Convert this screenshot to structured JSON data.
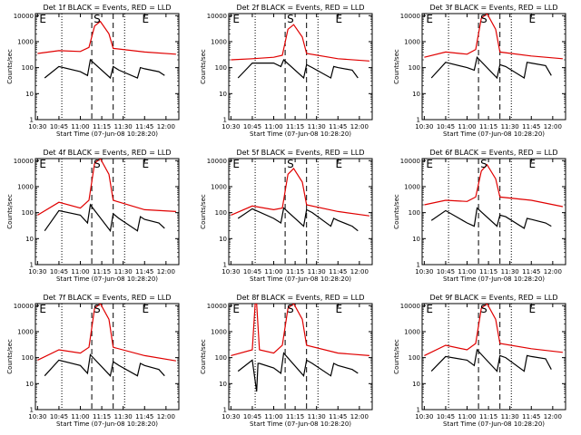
{
  "colors": {
    "events": "#000000",
    "lld": "#e00000",
    "background": "#ffffff"
  },
  "chart_data": [
    {
      "type": "line",
      "title": "Det 1f BLACK = Events, RED = LLD",
      "xlabel": "Start Time (07-Jun-08 10:28:20)",
      "ylabel": "Counts/sec",
      "xticks": [
        "10:30",
        "10:45",
        "11:00",
        "11:15",
        "11:30",
        "11:45",
        "12:00"
      ],
      "yticks": [
        "1",
        "10",
        "100",
        "1000",
        "10000"
      ],
      "ylog": true,
      "ylim": [
        1,
        12000
      ],
      "markers": [
        {
          "label": "E",
          "time": "10:30"
        },
        {
          "label": "S",
          "time": "11:08"
        },
        {
          "label": "E",
          "time": "11:42"
        }
      ],
      "dotted_lines": [
        "10:47",
        "11:31"
      ],
      "dashed_lines": [
        "11:08",
        "11:23"
      ],
      "series": [
        {
          "name": "LLD",
          "color": "#e00000",
          "x": [
            "10:30",
            "10:45",
            "11:00",
            "11:06",
            "11:10",
            "11:14",
            "11:20",
            "11:23",
            "11:45",
            "12:07"
          ],
          "y": [
            350,
            450,
            420,
            600,
            4000,
            6000,
            2000,
            550,
            400,
            330
          ]
        },
        {
          "name": "Events",
          "color": "#000000",
          "x": [
            "10:35",
            "10:45",
            "11:00",
            "11:05",
            "11:07",
            "11:21",
            "11:23",
            "11:27",
            "11:40",
            "11:42",
            "11:45",
            "11:55",
            "11:59"
          ],
          "y": [
            40,
            110,
            70,
            50,
            200,
            40,
            110,
            80,
            40,
            100,
            90,
            70,
            50
          ]
        }
      ]
    },
    {
      "type": "line",
      "title": "Det 2f BLACK = Events, RED = LLD",
      "xlabel": "Start Time (07-Jun-08 10:28:20)",
      "ylabel": "Counts/sec",
      "xticks": [
        "10:30",
        "10:45",
        "11:00",
        "11:15",
        "11:30",
        "11:45",
        "12:00"
      ],
      "yticks": [
        "1",
        "10",
        "100",
        "1000",
        "10000"
      ],
      "ylog": true,
      "ylim": [
        1,
        12000
      ],
      "markers": [
        {
          "label": "E",
          "time": "10:30"
        },
        {
          "label": "S",
          "time": "11:08"
        },
        {
          "label": "E",
          "time": "11:42"
        }
      ],
      "dotted_lines": [
        "10:47",
        "11:31"
      ],
      "dashed_lines": [
        "11:08",
        "11:23"
      ],
      "series": [
        {
          "name": "LLD",
          "color": "#e00000",
          "x": [
            "10:30",
            "10:45",
            "11:00",
            "11:06",
            "11:10",
            "11:14",
            "11:20",
            "11:23",
            "11:45",
            "12:07"
          ],
          "y": [
            200,
            220,
            250,
            300,
            3000,
            4500,
            1500,
            350,
            220,
            180
          ]
        },
        {
          "name": "Events",
          "color": "#000000",
          "x": [
            "10:35",
            "10:45",
            "11:00",
            "11:05",
            "11:07",
            "11:21",
            "11:23",
            "11:27",
            "11:40",
            "11:42",
            "11:45",
            "11:55",
            "11:59"
          ],
          "y": [
            40,
            150,
            150,
            110,
            200,
            40,
            130,
            100,
            40,
            110,
            100,
            80,
            40
          ]
        }
      ]
    },
    {
      "type": "line",
      "title": "Det 3f BLACK = Events, RED = LLD",
      "xlabel": "Start Time (07-Jun-08 10:28:20)",
      "ylabel": "Counts/sec",
      "xticks": [
        "10:30",
        "10:45",
        "11:00",
        "11:15",
        "11:30",
        "11:45",
        "12:00"
      ],
      "yticks": [
        "1",
        "10",
        "100",
        "1000",
        "10000"
      ],
      "ylog": true,
      "ylim": [
        1,
        12000
      ],
      "markers": [
        {
          "label": "E",
          "time": "10:30"
        },
        {
          "label": "S",
          "time": "11:08"
        },
        {
          "label": "E",
          "time": "11:42"
        }
      ],
      "dotted_lines": [
        "10:47",
        "11:31"
      ],
      "dashed_lines": [
        "11:08",
        "11:23"
      ],
      "series": [
        {
          "name": "LLD",
          "color": "#e00000",
          "x": [
            "10:30",
            "10:45",
            "11:00",
            "11:06",
            "11:10",
            "11:14",
            "11:20",
            "11:23",
            "11:45",
            "12:07"
          ],
          "y": [
            250,
            400,
            330,
            500,
            8000,
            12000,
            3000,
            400,
            280,
            220
          ]
        },
        {
          "name": "Events",
          "color": "#000000",
          "x": [
            "10:35",
            "10:45",
            "11:00",
            "11:05",
            "11:07",
            "11:21",
            "11:23",
            "11:27",
            "11:40",
            "11:42",
            "11:45",
            "11:55",
            "11:59"
          ],
          "y": [
            40,
            160,
            100,
            80,
            250,
            40,
            130,
            110,
            40,
            160,
            150,
            120,
            50
          ]
        }
      ]
    },
    {
      "type": "line",
      "title": "Det 4f BLACK = Events, RED = LLD",
      "xlabel": "Start Time (07-Jun-08 10:28:20)",
      "ylabel": "Counts/sec",
      "xticks": [
        "10:30",
        "10:45",
        "11:00",
        "11:15",
        "11:30",
        "11:45",
        "12:00"
      ],
      "yticks": [
        "1",
        "10",
        "100",
        "1000",
        "10000"
      ],
      "ylog": true,
      "ylim": [
        1,
        12000
      ],
      "markers": [
        {
          "label": "E",
          "time": "10:30"
        },
        {
          "label": "S",
          "time": "11:08"
        },
        {
          "label": "E",
          "time": "11:42"
        }
      ],
      "dotted_lines": [
        "10:47",
        "11:31"
      ],
      "dashed_lines": [
        "11:08",
        "11:23"
      ],
      "series": [
        {
          "name": "LLD",
          "color": "#e00000",
          "x": [
            "10:30",
            "10:45",
            "11:00",
            "11:06",
            "11:10",
            "11:14",
            "11:20",
            "11:23",
            "11:45",
            "12:07"
          ],
          "y": [
            80,
            250,
            150,
            300,
            8000,
            12000,
            3000,
            300,
            130,
            110
          ]
        },
        {
          "name": "Events",
          "color": "#000000",
          "x": [
            "10:35",
            "10:45",
            "11:00",
            "11:05",
            "11:07",
            "11:21",
            "11:23",
            "11:27",
            "11:40",
            "11:42",
            "11:45",
            "11:55",
            "11:59"
          ],
          "y": [
            20,
            120,
            80,
            40,
            200,
            20,
            90,
            60,
            20,
            70,
            55,
            40,
            25
          ]
        }
      ]
    },
    {
      "type": "line",
      "title": "Det 5f BLACK = Events, RED = LLD",
      "xlabel": "Start Time (07-Jun-08 10:28:20)",
      "ylabel": "Counts/sec",
      "xticks": [
        "10:30",
        "10:45",
        "11:00",
        "11:15",
        "11:30",
        "11:45",
        "12:00"
      ],
      "yticks": [
        "1",
        "10",
        "100",
        "1000",
        "10000"
      ],
      "ylog": true,
      "ylim": [
        1,
        12000
      ],
      "markers": [
        {
          "label": "E",
          "time": "10:30"
        },
        {
          "label": "S",
          "time": "11:08"
        },
        {
          "label": "E",
          "time": "11:42"
        }
      ],
      "dotted_lines": [
        "10:47",
        "11:31"
      ],
      "dashed_lines": [
        "11:08",
        "11:23"
      ],
      "series": [
        {
          "name": "LLD",
          "color": "#e00000",
          "x": [
            "10:30",
            "10:45",
            "11:00",
            "11:06",
            "11:10",
            "11:14",
            "11:20",
            "11:23",
            "11:45",
            "12:07"
          ],
          "y": [
            80,
            180,
            130,
            150,
            3000,
            5000,
            1500,
            200,
            110,
            75
          ]
        },
        {
          "name": "Events",
          "color": "#000000",
          "x": [
            "10:35",
            "10:45",
            "11:00",
            "11:05",
            "11:07",
            "11:21",
            "11:23",
            "11:27",
            "11:40",
            "11:42",
            "11:45",
            "11:55",
            "11:59"
          ],
          "y": [
            60,
            140,
            60,
            40,
            150,
            30,
            130,
            100,
            30,
            60,
            50,
            30,
            20
          ]
        }
      ]
    },
    {
      "type": "line",
      "title": "Det 6f BLACK = Events, RED = LLD",
      "xlabel": "Start Time (07-Jun-08 10:28:20)",
      "ylabel": "Counts/sec",
      "xticks": [
        "10:30",
        "10:45",
        "11:00",
        "11:15",
        "11:30",
        "11:45",
        "12:00"
      ],
      "yticks": [
        "1",
        "10",
        "100",
        "1000",
        "10000"
      ],
      "ylog": true,
      "ylim": [
        1,
        12000
      ],
      "markers": [
        {
          "label": "E",
          "time": "10:30"
        },
        {
          "label": "S",
          "time": "11:08"
        },
        {
          "label": "E",
          "time": "11:42"
        }
      ],
      "dotted_lines": [
        "10:47",
        "11:31"
      ],
      "dashed_lines": [
        "11:08",
        "11:23"
      ],
      "series": [
        {
          "name": "LLD",
          "color": "#e00000",
          "x": [
            "10:30",
            "10:45",
            "11:00",
            "11:06",
            "11:10",
            "11:14",
            "11:20",
            "11:23",
            "11:45",
            "12:07"
          ],
          "y": [
            200,
            300,
            270,
            400,
            4000,
            7000,
            2000,
            400,
            300,
            170
          ]
        },
        {
          "name": "Events",
          "color": "#000000",
          "x": [
            "10:35",
            "10:45",
            "11:00",
            "11:05",
            "11:07",
            "11:21",
            "11:23",
            "11:27",
            "11:40",
            "11:42",
            "11:45",
            "11:55",
            "11:59"
          ],
          "y": [
            50,
            120,
            40,
            30,
            150,
            30,
            80,
            70,
            25,
            60,
            55,
            40,
            30
          ]
        }
      ]
    },
    {
      "type": "line",
      "title": "Det 7f BLACK = Events, RED = LLD",
      "xlabel": "Start Time (07-Jun-08 10:28:20)",
      "ylabel": "Counts/sec",
      "xticks": [
        "10:30",
        "10:45",
        "11:00",
        "11:15",
        "11:30",
        "11:45",
        "12:00"
      ],
      "yticks": [
        "1",
        "10",
        "100",
        "1000",
        "10000"
      ],
      "ylog": true,
      "ylim": [
        1,
        12000
      ],
      "markers": [
        {
          "label": "E",
          "time": "10:30"
        },
        {
          "label": "S",
          "time": "11:08"
        },
        {
          "label": "E",
          "time": "11:42"
        }
      ],
      "dotted_lines": [
        "10:47",
        "11:31"
      ],
      "dashed_lines": [
        "11:08",
        "11:23"
      ],
      "series": [
        {
          "name": "LLD",
          "color": "#e00000",
          "x": [
            "10:30",
            "10:45",
            "11:00",
            "11:06",
            "11:10",
            "11:14",
            "11:20",
            "11:23",
            "11:45",
            "12:07"
          ],
          "y": [
            80,
            200,
            150,
            250,
            8000,
            12000,
            3000,
            250,
            120,
            75
          ]
        },
        {
          "name": "Events",
          "color": "#000000",
          "x": [
            "10:35",
            "10:45",
            "11:00",
            "11:05",
            "11:07",
            "11:21",
            "11:23",
            "11:27",
            "11:40",
            "11:42",
            "11:45",
            "11:55",
            "11:59"
          ],
          "y": [
            20,
            80,
            50,
            25,
            130,
            20,
            70,
            50,
            20,
            60,
            50,
            35,
            20
          ]
        }
      ]
    },
    {
      "type": "line",
      "title": "Det 8f BLACK = Events, RED = LLD",
      "xlabel": "Start Time (07-Jun-08 10:28:20)",
      "ylabel": "Counts/sec",
      "xticks": [
        "10:30",
        "10:45",
        "11:00",
        "11:15",
        "11:30",
        "11:45",
        "12:00"
      ],
      "yticks": [
        "1",
        "10",
        "100",
        "1000",
        "10000"
      ],
      "ylog": true,
      "ylim": [
        1,
        12000
      ],
      "markers": [
        {
          "label": "E",
          "time": "10:30"
        },
        {
          "label": "S",
          "time": "11:08"
        },
        {
          "label": "E",
          "time": "11:42"
        }
      ],
      "dotted_lines": [
        "10:47",
        "11:31"
      ],
      "dashed_lines": [
        "11:08",
        "11:23"
      ],
      "series": [
        {
          "name": "LLD",
          "color": "#e00000",
          "x": [
            "10:30",
            "10:45",
            "10:47",
            "10:48",
            "10:50",
            "11:00",
            "11:06",
            "11:10",
            "11:14",
            "11:20",
            "11:23",
            "11:45",
            "12:07"
          ],
          "y": [
            120,
            200,
            12000,
            12000,
            200,
            150,
            300,
            8000,
            12000,
            3000,
            300,
            150,
            120
          ]
        },
        {
          "name": "Events",
          "color": "#000000",
          "x": [
            "10:35",
            "10:45",
            "10:48",
            "10:49",
            "10:50",
            "11:00",
            "11:05",
            "11:07",
            "11:21",
            "11:23",
            "11:27",
            "11:40",
            "11:42",
            "11:45",
            "11:55",
            "11:59"
          ],
          "y": [
            30,
            80,
            5,
            60,
            60,
            40,
            25,
            150,
            20,
            80,
            60,
            20,
            60,
            50,
            35,
            25
          ]
        }
      ]
    },
    {
      "type": "line",
      "title": "Det 9f BLACK = Events, RED = LLD",
      "xlabel": "Start Time (07-Jun-08 10:28:20)",
      "ylabel": "Counts/sec",
      "xticks": [
        "10:30",
        "10:45",
        "11:00",
        "11:15",
        "11:30",
        "11:45",
        "12:00"
      ],
      "yticks": [
        "1",
        "10",
        "100",
        "1000",
        "10000"
      ],
      "ylog": true,
      "ylim": [
        1,
        12000
      ],
      "markers": [
        {
          "label": "E",
          "time": "10:30"
        },
        {
          "label": "S",
          "time": "11:08"
        },
        {
          "label": "E",
          "time": "11:42"
        }
      ],
      "dotted_lines": [
        "10:47",
        "11:31"
      ],
      "dashed_lines": [
        "11:08",
        "11:23"
      ],
      "series": [
        {
          "name": "LLD",
          "color": "#e00000",
          "x": [
            "10:30",
            "10:45",
            "11:00",
            "11:06",
            "11:10",
            "11:14",
            "11:20",
            "11:23",
            "11:45",
            "12:07"
          ],
          "y": [
            120,
            300,
            200,
            350,
            8000,
            12000,
            3000,
            350,
            220,
            160
          ]
        },
        {
          "name": "Events",
          "color": "#000000",
          "x": [
            "10:35",
            "10:45",
            "11:00",
            "11:05",
            "11:07",
            "11:21",
            "11:23",
            "11:27",
            "11:40",
            "11:42",
            "11:45",
            "11:55",
            "11:59"
          ],
          "y": [
            30,
            110,
            80,
            50,
            200,
            30,
            120,
            100,
            30,
            120,
            110,
            90,
            35
          ]
        }
      ]
    }
  ]
}
